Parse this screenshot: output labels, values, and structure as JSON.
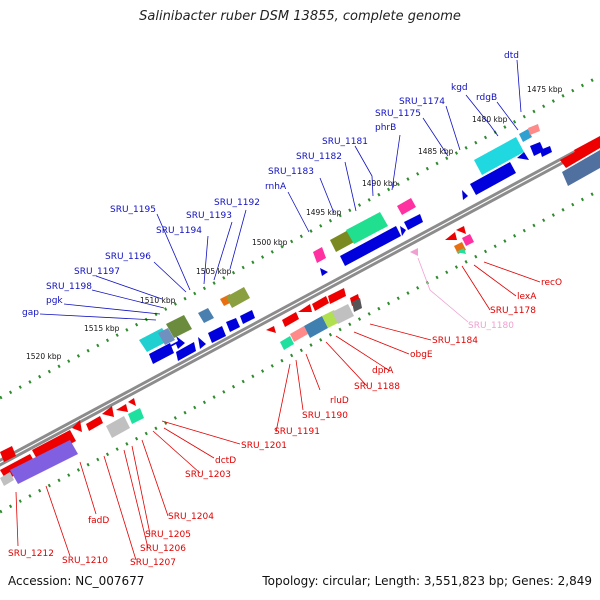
{
  "title": "Salinibacter ruber DSM 13855, complete genome",
  "footer": {
    "accession": "Accession: NC_007677",
    "summary": "Topology: circular; Length: 3,551,823 bp; Genes: 2,849"
  },
  "colors": {
    "plus_label": "#1010c0",
    "minus_label": "#e00000",
    "pseudo_label": "#f0a0d0",
    "backbone": "#888888",
    "tick": "#2e8b2e"
  },
  "kbp_labels": [
    "1475 kbp",
    "1480 kbp",
    "1485 kbp",
    "1490 kbp",
    "1495 kbp",
    "1500 kbp",
    "1505 kbp",
    "1510 kbp",
    "1515 kbp",
    "1520 kbp"
  ],
  "plus_labels": [
    "dtd",
    "rdgB",
    "kgd",
    "SRU_1174",
    "SRU_1175",
    "phrB",
    "SRU_1181",
    "SRU_1182",
    "SRU_1183",
    "rnhA",
    "SRU_1192",
    "SRU_1193",
    "SRU_1194",
    "SRU_1195",
    "SRU_1196",
    "SRU_1197",
    "SRU_1198",
    "pgk",
    "gap"
  ],
  "minus_labels": [
    "recO",
    "lexA",
    "SRU_1178",
    "SRU_1184",
    "obgE",
    "dprA",
    "SRU_1188",
    "rluD",
    "SRU_1190",
    "SRU_1191",
    "SRU_1201",
    "dctD",
    "SRU_1203",
    "SRU_1204",
    "SRU_1205",
    "SRU_1206",
    "SRU_1207",
    "fadD",
    "SRU_1210",
    "SRU_1212"
  ],
  "pseudo_labels": [
    "SRU_1180"
  ]
}
